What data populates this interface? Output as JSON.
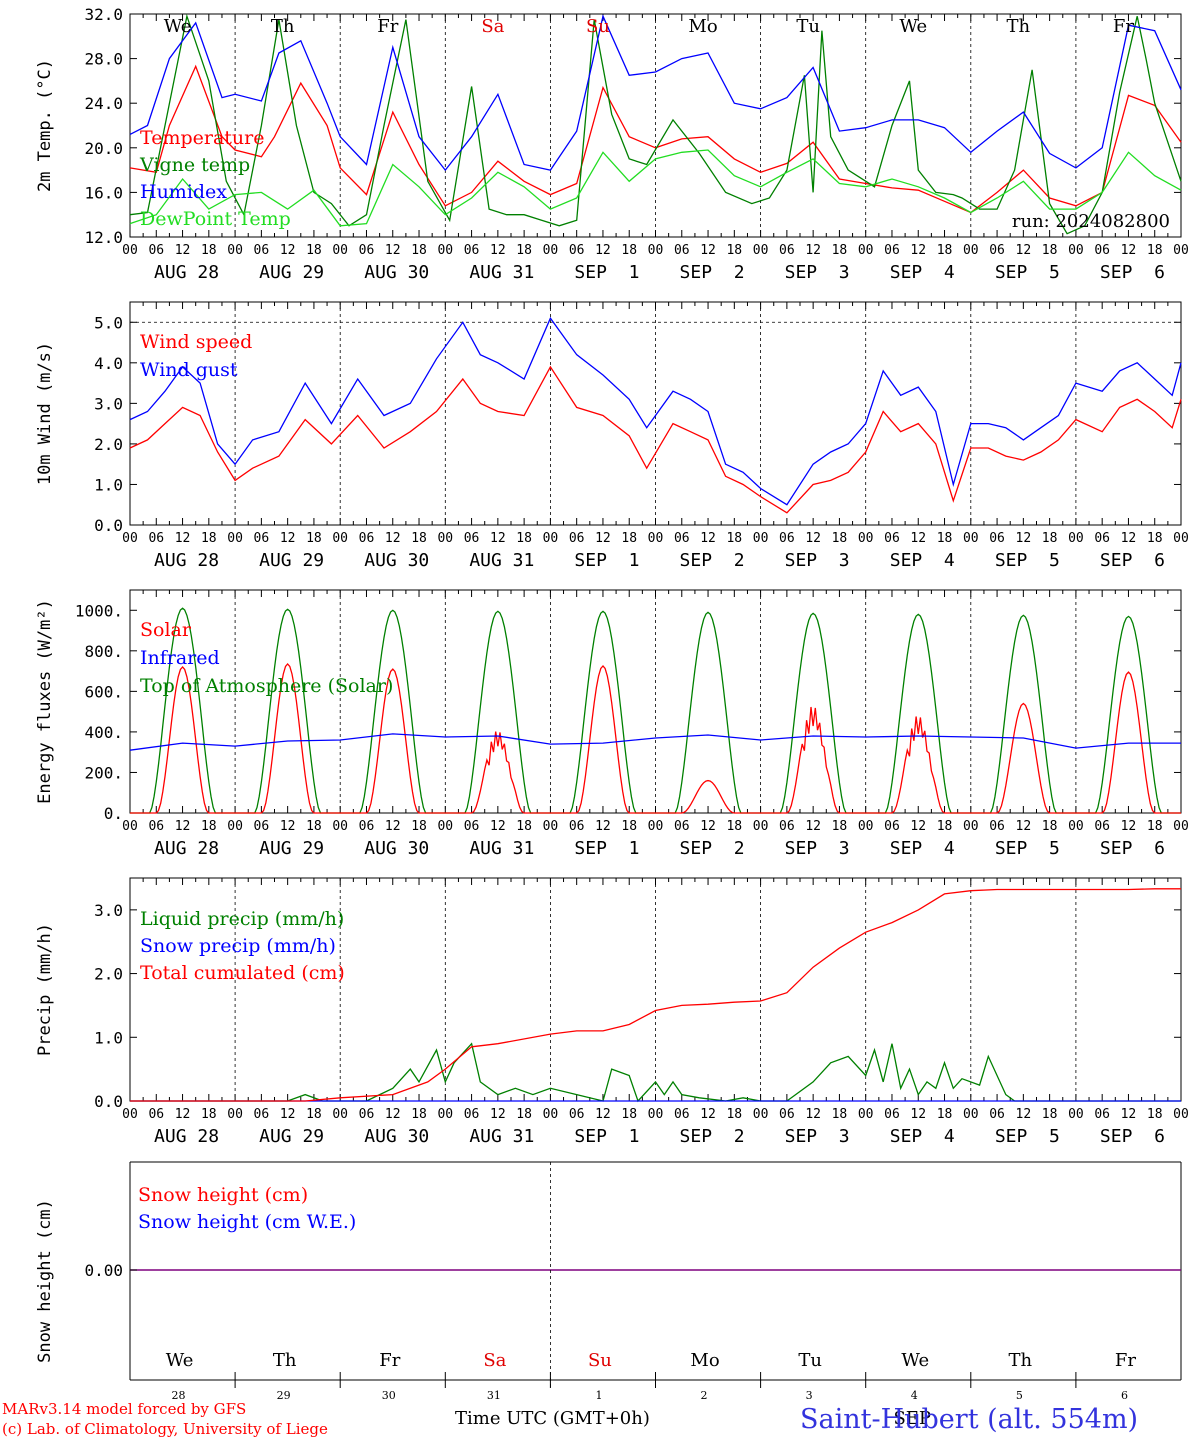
{
  "title": {
    "location": "Saint-Hubert (alt. 554m)",
    "credit_line1": "MARv3.14 model forced by GFS",
    "credit_line2": "(c) Lab. of Climatology, University of Liege",
    "xaxis_label": "Time UTC (GMT+0h)",
    "run": "run: 2024082800"
  },
  "hour_ticks": [
    "00",
    "06",
    "12",
    "18"
  ],
  "date_labels": [
    "AUG 28",
    "AUG 29",
    "AUG 30",
    "AUG 31",
    "SEP  1",
    "SEP  2",
    "SEP  3",
    "SEP  4",
    "SEP  5",
    "SEP  6"
  ],
  "day_names": [
    {
      "label": "We",
      "color": "#000000"
    },
    {
      "label": "Th",
      "color": "#000000"
    },
    {
      "label": "Fr",
      "color": "#000000"
    },
    {
      "label": "Sa",
      "color": "#e00000"
    },
    {
      "label": "Su",
      "color": "#e00000"
    },
    {
      "label": "Mo",
      "color": "#000000"
    },
    {
      "label": "Tu",
      "color": "#000000"
    },
    {
      "label": "We",
      "color": "#000000"
    },
    {
      "label": "Th",
      "color": "#000000"
    },
    {
      "label": "Fr",
      "color": "#000000"
    }
  ],
  "snow_day_numbers": [
    "28",
    "29",
    "30",
    "31",
    "1",
    "2",
    "3",
    "4",
    "5",
    "6"
  ],
  "snow_month_label": "SEP",
  "colors": {
    "red": "#ff0000",
    "green": "#008000",
    "blue": "#0000ff",
    "lightgreen": "#22dd22",
    "purple": "#7f007f"
  },
  "chart_data": [
    {
      "type": "line",
      "ylabel": "2m Temp. (°C)",
      "ylim": [
        12,
        32
      ],
      "yticks": [
        "12.0",
        "16.0",
        "20.0",
        "24.0",
        "28.0",
        "32.0"
      ],
      "x_unit": "hours since AUG 28 00 UTC",
      "series": [
        {
          "name": "Temperature",
          "color": "red",
          "x": [
            0,
            6,
            9,
            15,
            21,
            24,
            30,
            33,
            39,
            45,
            48,
            54,
            60,
            66,
            72,
            78,
            84,
            90,
            96,
            102,
            108,
            114,
            120,
            126,
            132,
            138,
            144,
            150,
            156,
            162,
            168,
            174,
            180,
            186,
            192,
            198,
            204,
            210,
            216,
            222,
            228,
            234,
            240
          ],
          "y": [
            18.2,
            17.8,
            22,
            27.3,
            21,
            19.8,
            19.2,
            21,
            25.8,
            22,
            18.2,
            15.8,
            23.2,
            18.5,
            14.8,
            16,
            18.8,
            17,
            15.8,
            16.8,
            25.4,
            21,
            20,
            20.8,
            21,
            19,
            17.8,
            18.6,
            20.5,
            17.2,
            16.8,
            16.4,
            16.2,
            15.2,
            14.2,
            16,
            18,
            15.5,
            14.8,
            16,
            24.7,
            23.8,
            20.5
          ]
        },
        {
          "name": "Vigne temp",
          "color": "green",
          "x": [
            0,
            4,
            8,
            13,
            18,
            22,
            26,
            30,
            34,
            38,
            42,
            46,
            50,
            54,
            58,
            63,
            68,
            73,
            78,
            82,
            86,
            90,
            94,
            98,
            102,
            106,
            110,
            114,
            118,
            124,
            130,
            136,
            142,
            146,
            150,
            154,
            156,
            158,
            160,
            164,
            170,
            174,
            178,
            180,
            184,
            188,
            190,
            194,
            198,
            202,
            206,
            210,
            214,
            218,
            222,
            226,
            230,
            232,
            234,
            240
          ],
          "y": [
            14,
            14.2,
            22,
            31.8,
            26,
            17,
            14,
            22,
            31.5,
            22,
            16,
            15,
            13,
            14,
            22,
            31.5,
            17,
            13.5,
            25.5,
            14.5,
            14,
            14,
            13.5,
            13,
            13.5,
            31.5,
            23,
            19,
            18.5,
            22.5,
            19.5,
            16,
            15,
            15.5,
            18,
            26.5,
            16,
            30.5,
            21,
            18,
            16.5,
            22,
            26,
            18,
            16,
            15.8,
            15.5,
            14.5,
            14.5,
            18,
            27,
            15,
            12.3,
            13,
            16,
            25,
            31.8,
            28,
            24,
            17
          ]
        },
        {
          "name": "Humidex",
          "color": "blue",
          "x": [
            0,
            4,
            9,
            15,
            21,
            24,
            30,
            34,
            39,
            45,
            48,
            54,
            60,
            66,
            72,
            78,
            84,
            90,
            96,
            102,
            108,
            114,
            120,
            126,
            132,
            138,
            144,
            150,
            156,
            162,
            168,
            174,
            180,
            186,
            192,
            198,
            204,
            210,
            216,
            222,
            228,
            234,
            240
          ],
          "y": [
            21.2,
            22,
            28,
            31.2,
            24.5,
            24.8,
            24.2,
            28.5,
            29.6,
            24,
            21,
            18.5,
            29,
            21,
            18,
            21,
            24.8,
            18.5,
            18,
            21.5,
            31.8,
            26.5,
            26.8,
            28,
            28.5,
            24,
            23.5,
            24.5,
            27.2,
            21.5,
            21.8,
            22.5,
            22.5,
            21.8,
            19.6,
            21.5,
            23.2,
            19.5,
            18.2,
            20,
            31,
            30.5,
            25.2
          ]
        },
        {
          "name": "DewPoint Temp",
          "color": "lightgreen",
          "x": [
            0,
            6,
            12,
            18,
            24,
            30,
            36,
            42,
            48,
            54,
            60,
            66,
            72,
            78,
            84,
            90,
            96,
            102,
            108,
            114,
            120,
            126,
            132,
            138,
            144,
            150,
            156,
            162,
            168,
            174,
            180,
            186,
            192,
            198,
            204,
            210,
            216,
            222,
            228,
            234,
            240
          ],
          "y": [
            13.2,
            14,
            17.2,
            14.5,
            15.8,
            16,
            14.5,
            16.2,
            13,
            13.2,
            18.5,
            16.5,
            14,
            15.5,
            17.8,
            16.5,
            14.5,
            15.5,
            19.6,
            17,
            19,
            19.6,
            19.8,
            17.5,
            16.5,
            17.8,
            19,
            16.8,
            16.5,
            17.2,
            16.5,
            15.5,
            14.2,
            15.5,
            17,
            14.5,
            14.5,
            16,
            19.6,
            17.5,
            16.2
          ]
        }
      ]
    },
    {
      "type": "line",
      "ylabel": "10m Wind (m/s)",
      "ylim": [
        0,
        5.5
      ],
      "yticks": [
        "0.0",
        "1.0",
        "2.0",
        "3.0",
        "4.0",
        "5.0"
      ],
      "dashed_line": 5.0,
      "series": [
        {
          "name": "Wind speed",
          "color": "red",
          "x": [
            0,
            4,
            8,
            12,
            16,
            20,
            24,
            28,
            34,
            40,
            46,
            52,
            58,
            64,
            70,
            76,
            80,
            84,
            90,
            96,
            102,
            108,
            114,
            118,
            124,
            128,
            132,
            136,
            140,
            144,
            150,
            156,
            160,
            164,
            168,
            172,
            176,
            180,
            184,
            188,
            192,
            196,
            200,
            204,
            208,
            212,
            216,
            222,
            226,
            230,
            234,
            238,
            240
          ],
          "y": [
            1.9,
            2.1,
            2.5,
            2.9,
            2.7,
            1.8,
            1.1,
            1.4,
            1.7,
            2.6,
            2,
            2.7,
            1.9,
            2.3,
            2.8,
            3.6,
            3,
            2.8,
            2.7,
            3.9,
            2.9,
            2.7,
            2.2,
            1.4,
            2.5,
            2.3,
            2.1,
            1.2,
            1,
            0.7,
            0.3,
            1,
            1.1,
            1.3,
            1.8,
            2.8,
            2.3,
            2.5,
            2,
            0.6,
            1.9,
            1.9,
            1.7,
            1.6,
            1.8,
            2.1,
            2.6,
            2.3,
            2.9,
            3.1,
            2.8,
            2.4,
            3.1
          ]
        },
        {
          "name": "Wind gust",
          "color": "blue",
          "x": [
            0,
            4,
            8,
            12,
            16,
            20,
            24,
            28,
            34,
            40,
            46,
            52,
            58,
            64,
            70,
            76,
            80,
            84,
            90,
            96,
            102,
            108,
            114,
            118,
            124,
            128,
            132,
            136,
            140,
            144,
            150,
            156,
            160,
            164,
            168,
            172,
            176,
            180,
            184,
            188,
            192,
            196,
            200,
            204,
            208,
            212,
            216,
            222,
            226,
            230,
            234,
            238,
            240
          ],
          "y": [
            2.6,
            2.8,
            3.3,
            3.9,
            3.5,
            2,
            1.5,
            2.1,
            2.3,
            3.5,
            2.5,
            3.6,
            2.7,
            3,
            4.1,
            5,
            4.2,
            4,
            3.6,
            5.1,
            4.2,
            3.7,
            3.1,
            2.4,
            3.3,
            3.1,
            2.8,
            1.5,
            1.3,
            0.9,
            0.5,
            1.5,
            1.8,
            2,
            2.5,
            3.8,
            3.2,
            3.4,
            2.8,
            1,
            2.5,
            2.5,
            2.4,
            2.1,
            2.4,
            2.7,
            3.5,
            3.3,
            3.8,
            4,
            3.6,
            3.2,
            4
          ]
        }
      ]
    },
    {
      "type": "line",
      "ylabel": "Energy fluxes (W/m²)",
      "ylim": [
        0,
        1100
      ],
      "yticks": [
        "0.",
        "200.",
        "400.",
        "600.",
        "800.",
        "1000."
      ],
      "series": [
        {
          "name": "Solar",
          "color": "red",
          "peaks": [
            720,
            735,
            710,
            430,
            725,
            160,
            560,
            510,
            540,
            695
          ]
        },
        {
          "name": "Infrared",
          "color": "blue",
          "x": [
            0,
            12,
            24,
            36,
            48,
            60,
            72,
            84,
            96,
            108,
            120,
            132,
            144,
            156,
            168,
            180,
            192,
            204,
            216,
            228,
            240
          ],
          "y": [
            310,
            345,
            330,
            355,
            360,
            390,
            375,
            380,
            340,
            345,
            370,
            385,
            360,
            380,
            375,
            380,
            375,
            370,
            320,
            345,
            345
          ]
        },
        {
          "name": "Top of Atmosphere (Solar)",
          "color": "green",
          "peaks": [
            1010,
            1005,
            1000,
            995,
            995,
            990,
            985,
            980,
            975,
            970
          ]
        }
      ]
    },
    {
      "type": "line",
      "ylabel": "Precip (mm/h)",
      "ylim": [
        0,
        3.5
      ],
      "yticks": [
        "0.0",
        "1.0",
        "2.0",
        "3.0"
      ],
      "series": [
        {
          "name": "Liquid precip (mm/h)",
          "color": "green",
          "x": [
            0,
            36,
            40,
            44,
            48,
            54,
            60,
            64,
            66,
            70,
            72,
            74,
            78,
            80,
            84,
            88,
            92,
            96,
            102,
            108,
            110,
            114,
            116,
            120,
            122,
            124,
            126,
            130,
            136,
            140,
            144,
            150,
            156,
            160,
            164,
            168,
            170,
            172,
            174,
            176,
            178,
            180,
            182,
            184,
            186,
            188,
            190,
            194,
            196,
            200,
            202,
            240
          ],
          "y": [
            0,
            0,
            0.1,
            0,
            0,
            0,
            0.2,
            0.5,
            0.3,
            0.8,
            0.3,
            0.6,
            0.9,
            0.3,
            0.1,
            0.2,
            0.1,
            0.2,
            0.1,
            0,
            0.5,
            0.4,
            0,
            0.3,
            0.1,
            0.3,
            0.1,
            0.05,
            0,
            0.05,
            0,
            0,
            0.3,
            0.6,
            0.7,
            0.4,
            0.8,
            0.3,
            0.9,
            0.2,
            0.5,
            0.1,
            0.3,
            0.2,
            0.6,
            0.2,
            0.35,
            0.25,
            0.7,
            0.1,
            0,
            0
          ]
        },
        {
          "name": "Snow precip (mm/h)",
          "color": "blue",
          "x": [
            0,
            240
          ],
          "y": [
            0,
            0
          ]
        },
        {
          "name": "Total cumulated (cm)",
          "color": "red",
          "x": [
            0,
            40,
            48,
            60,
            68,
            72,
            78,
            84,
            96,
            102,
            108,
            114,
            120,
            126,
            132,
            138,
            144,
            150,
            156,
            162,
            168,
            174,
            180,
            186,
            192,
            198,
            204,
            210,
            216,
            222,
            228,
            234,
            240
          ],
          "y": [
            0,
            0,
            0.05,
            0.1,
            0.3,
            0.5,
            0.85,
            0.9,
            1.05,
            1.1,
            1.1,
            1.2,
            1.42,
            1.5,
            1.52,
            1.55,
            1.57,
            1.7,
            2.1,
            2.4,
            2.65,
            2.8,
            3.0,
            3.25,
            3.3,
            3.32,
            3.32,
            3.32,
            3.32,
            3.32,
            3.32,
            3.33,
            3.33
          ]
        }
      ]
    },
    {
      "type": "line",
      "ylabel": "Snow height (cm)",
      "yticks": [
        "0.00"
      ],
      "series": [
        {
          "name": "Snow height (cm)",
          "color": "red",
          "x": [
            0,
            240
          ],
          "y": [
            0,
            0
          ]
        },
        {
          "name": "Snow height (cm W.E.)",
          "color": "blue",
          "x": [
            0,
            240
          ],
          "y": [
            0,
            0
          ]
        }
      ]
    }
  ]
}
